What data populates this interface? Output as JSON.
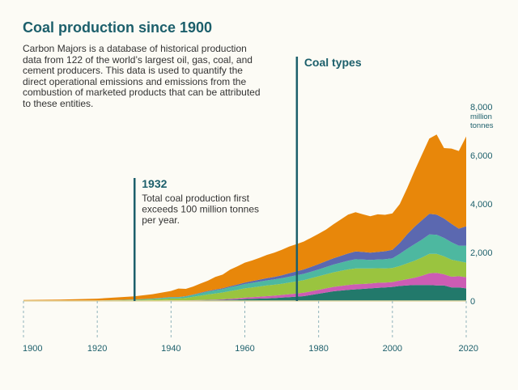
{
  "title": "Coal production since 1900",
  "description": "Carbon Majors is a database of historical production data from 122 of the world’s largest oil, gas, coal, and cement producers. This data is used to quantify the direct operational emissions and emissions from the combustion of marketed products that can be attributed to these entities.",
  "chart_data": {
    "type": "area",
    "stacked": true,
    "title": "Coal production since 1900",
    "x": [
      1900,
      1910,
      1920,
      1930,
      1935,
      1940,
      1942,
      1944,
      1946,
      1948,
      1950,
      1952,
      1954,
      1956,
      1958,
      1960,
      1962,
      1964,
      1966,
      1968,
      1970,
      1972,
      1974,
      1976,
      1978,
      1980,
      1982,
      1984,
      1986,
      1988,
      1990,
      1992,
      1994,
      1996,
      1998,
      2000,
      2002,
      2004,
      2006,
      2008,
      2010,
      2012,
      2014,
      2016,
      2018,
      2020
    ],
    "series": [
      {
        "values": [
          0,
          0,
          2,
          8,
          12,
          20,
          20,
          22,
          25,
          30,
          35,
          40,
          45,
          55,
          65,
          80,
          90,
          100,
          110,
          120,
          140,
          160,
          180,
          200,
          250,
          300,
          350,
          400,
          430,
          460,
          480,
          500,
          520,
          540,
          560,
          580,
          620,
          640,
          660,
          660,
          660,
          640,
          640,
          560,
          560,
          520
        ],
        "color": "#22796b"
      },
      {
        "values": [
          0,
          0,
          0,
          2,
          3,
          5,
          5,
          6,
          8,
          10,
          15,
          20,
          25,
          35,
          45,
          60,
          70,
          80,
          90,
          100,
          110,
          120,
          130,
          140,
          150,
          160,
          170,
          180,
          190,
          200,
          210,
          200,
          200,
          210,
          200,
          200,
          220,
          260,
          300,
          380,
          480,
          520,
          460,
          440,
          460,
          460
        ],
        "color": "#cc5cb4"
      },
      {
        "values": [
          0,
          0,
          10,
          30,
          50,
          80,
          80,
          100,
          140,
          180,
          220,
          250,
          280,
          320,
          350,
          380,
          400,
          420,
          440,
          450,
          460,
          480,
          500,
          520,
          540,
          560,
          580,
          600,
          620,
          640,
          650,
          640,
          620,
          600,
          580,
          580,
          600,
          650,
          700,
          750,
          800,
          780,
          740,
          700,
          620,
          600
        ],
        "color": "#9ac43f"
      },
      {
        "values": [
          0,
          0,
          5,
          20,
          30,
          50,
          50,
          60,
          80,
          100,
          120,
          130,
          140,
          160,
          170,
          180,
          190,
          200,
          210,
          220,
          230,
          240,
          250,
          260,
          270,
          280,
          300,
          320,
          340,
          360,
          380,
          370,
          350,
          360,
          380,
          400,
          500,
          600,
          680,
          740,
          800,
          790,
          760,
          720,
          640,
          700
        ],
        "color": "#4db8a0"
      },
      {
        "values": [
          0,
          0,
          0,
          2,
          5,
          10,
          10,
          12,
          15,
          20,
          25,
          30,
          35,
          40,
          50,
          60,
          70,
          80,
          90,
          100,
          120,
          140,
          160,
          180,
          200,
          220,
          240,
          260,
          280,
          300,
          320,
          310,
          300,
          310,
          330,
          350,
          450,
          600,
          720,
          800,
          850,
          830,
          800,
          760,
          700,
          800
        ],
        "color": "#5b68b0"
      },
      {
        "values": [
          40,
          60,
          80,
          130,
          180,
          250,
          350,
          300,
          330,
          380,
          420,
          520,
          560,
          680,
          750,
          820,
          850,
          900,
          960,
          1000,
          1050,
          1100,
          1120,
          1150,
          1200,
          1250,
          1300,
          1400,
          1500,
          1600,
          1620,
          1550,
          1500,
          1550,
          1500,
          1500,
          1600,
          1900,
          2300,
          2700,
          3100,
          3300,
          2900,
          3100,
          3200,
          3700
        ],
        "color": "#e8870a"
      }
    ],
    "xlim": [
      1900,
      2020
    ],
    "ylim": [
      0,
      8000
    ],
    "x_ticks": [
      "1900",
      "1920",
      "1940",
      "1960",
      "1980",
      "2000",
      "2020"
    ],
    "y_ticks": [
      "0",
      "2,000",
      "4,000",
      "6,000",
      "8,000"
    ],
    "y_unit_lines": [
      "million",
      "tonnes"
    ],
    "grid": false,
    "annotations": [
      {
        "x": 1930,
        "title": "1932",
        "text_lines": [
          "Total coal production first",
          "exceeds 100 million tonnes",
          "per year."
        ]
      },
      {
        "x": 1974,
        "title": "Coal types",
        "text_lines": []
      }
    ]
  }
}
